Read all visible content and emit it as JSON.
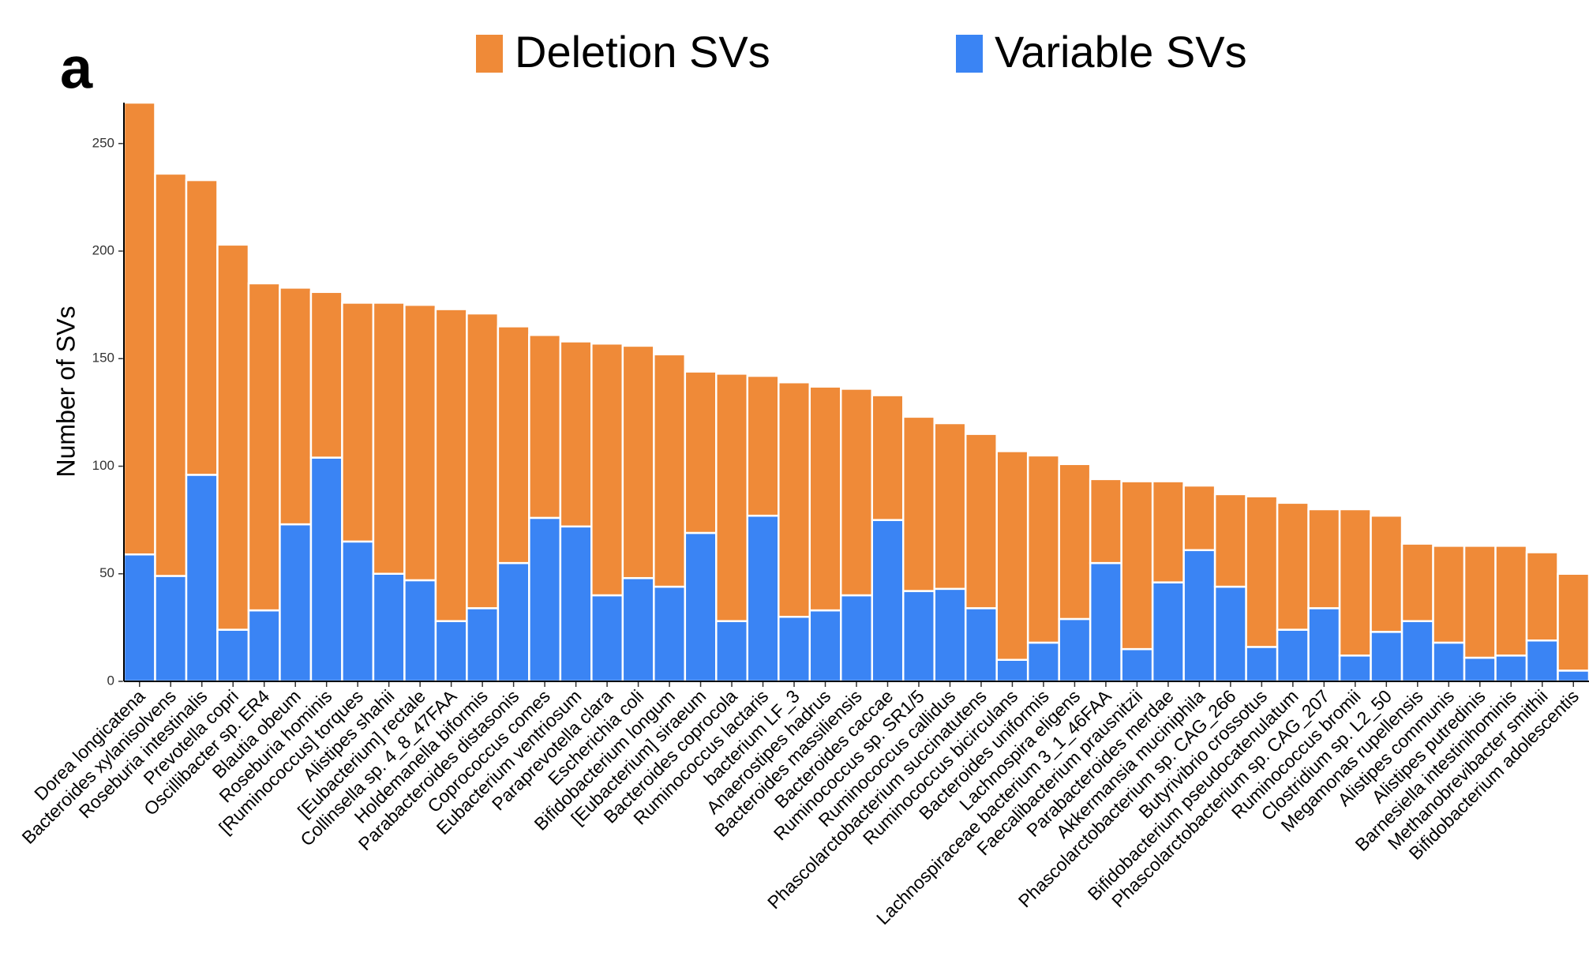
{
  "chart_data": {
    "type": "stacked_bar",
    "panel_label": "a",
    "y_label": "Number of SVs",
    "categories": [
      "Dorea longicatena",
      "Bacteroides xylanisolvens",
      "Roseburia intestinalis",
      "Prevotella copri",
      "Oscillibacter sp. ER4",
      "Blautia obeum",
      "Roseburia hominis",
      "[Ruminococcus] torques",
      "Alistipes shahii",
      "[Eubacterium] rectale",
      "Collinsella sp. 4_8_47FAA",
      "Holdemanella biformis",
      "Parabacteroides distasonis",
      "Coprococcus comes",
      "Eubacterium ventriosum",
      "Paraprevotella clara",
      "Escherichia coli",
      "Bifidobacterium longum",
      "[Eubacterium] siraeum",
      "Bacteroides coprocola",
      "Ruminococcus lactaris",
      "bacterium LF_3",
      "Anaerostipes hadrus",
      "Bacteroides massiliensis",
      "Bacteroides caccae",
      "Ruminococcus sp. SR1/5",
      "Ruminococcus callidus",
      "Phascolarctobacterium succinatutens",
      "Ruminococcus bicirculans",
      "Bacteroides uniformis",
      "Lachnospira eligens",
      "Lachnospiraceae bacterium 3_1_46FAA",
      "Faecalibacterium prausnitzii",
      "Parabacteroides merdae",
      "Akkermansia muciniphila",
      "Phascolarctobacterium sp. CAG_266",
      "Butyrivibrio crossotus",
      "Bifidobacterium pseudocatenulatum",
      "Phascolarctobacterium sp. CAG_207",
      "Ruminococcus bromii",
      "Clostridium sp. L2_50",
      "Megamonas rupellensis",
      "Alistipes communis",
      "Alistipes putredinis",
      "Barnesiella intestinihominis",
      "Methanobrevibacter smithii",
      "Bifidobacterium adolescentis"
    ],
    "series": [
      {
        "name": "Deletion SVs",
        "color": "#ef8a38",
        "values": [
          210,
          187,
          137,
          179,
          152,
          110,
          77,
          111,
          126,
          128,
          145,
          137,
          110,
          85,
          86,
          117,
          108,
          108,
          75,
          115,
          65,
          109,
          104,
          96,
          58,
          81,
          77,
          81,
          97,
          87,
          72,
          39,
          78,
          47,
          30,
          43,
          70,
          59,
          46,
          68,
          54,
          36,
          45,
          52,
          51,
          41,
          45
        ]
      },
      {
        "name": "Variable SVs",
        "color": "#3a84f4",
        "values": [
          59,
          49,
          96,
          24,
          33,
          73,
          104,
          65,
          50,
          47,
          28,
          34,
          55,
          76,
          72,
          40,
          48,
          44,
          69,
          28,
          77,
          30,
          33,
          40,
          75,
          42,
          43,
          34,
          10,
          18,
          29,
          55,
          15,
          46,
          61,
          44,
          16,
          24,
          34,
          12,
          23,
          28,
          18,
          11,
          12,
          19,
          5
        ]
      }
    ],
    "ylim": [
      0,
      269
    ],
    "yticks": [
      0,
      50,
      100,
      150,
      200,
      250
    ],
    "legend": "top"
  }
}
